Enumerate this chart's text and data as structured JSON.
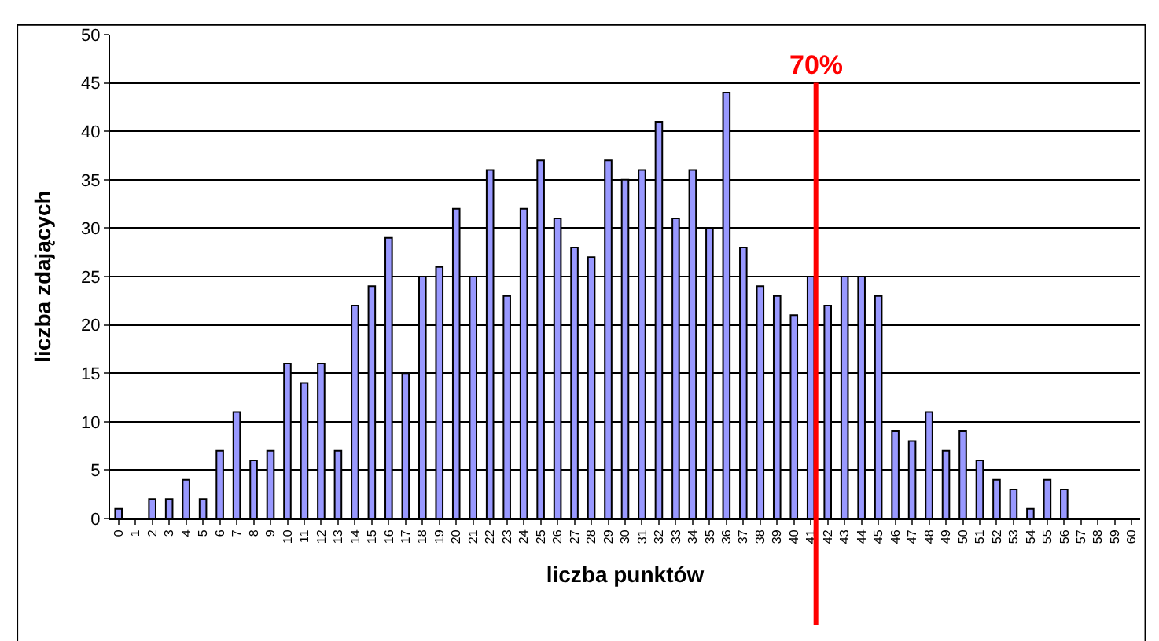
{
  "chart_data": {
    "type": "bar",
    "xlabel": "liczba punktów",
    "ylabel": "liczba zdających",
    "x": [
      0,
      1,
      2,
      3,
      4,
      5,
      6,
      7,
      8,
      9,
      10,
      11,
      12,
      13,
      14,
      15,
      16,
      17,
      18,
      19,
      20,
      21,
      22,
      23,
      24,
      25,
      26,
      27,
      28,
      29,
      30,
      31,
      32,
      33,
      34,
      35,
      36,
      37,
      38,
      39,
      40,
      41,
      42,
      43,
      44,
      45,
      46,
      47,
      48,
      49,
      50,
      51,
      52,
      53,
      54,
      55,
      56,
      57,
      58,
      59,
      60
    ],
    "values": [
      1,
      0,
      2,
      2,
      4,
      2,
      7,
      11,
      6,
      7,
      16,
      14,
      16,
      7,
      22,
      24,
      29,
      15,
      25,
      26,
      32,
      25,
      36,
      23,
      32,
      37,
      31,
      28,
      27,
      37,
      35,
      36,
      41,
      31,
      36,
      30,
      44,
      28,
      24,
      23,
      21,
      25,
      22,
      25,
      25,
      23,
      9,
      8,
      11,
      7,
      9,
      6,
      4,
      3,
      1,
      4,
      3,
      0,
      0,
      0,
      0
    ],
    "color": "#9999ff",
    "xlim": [
      -0.5,
      60.5
    ],
    "xticks": [
      0,
      1,
      2,
      3,
      4,
      5,
      6,
      7,
      8,
      9,
      10,
      11,
      12,
      13,
      14,
      15,
      16,
      17,
      18,
      19,
      20,
      21,
      22,
      23,
      24,
      25,
      26,
      27,
      28,
      29,
      30,
      31,
      32,
      33,
      34,
      35,
      36,
      37,
      38,
      39,
      40,
      41,
      42,
      43,
      44,
      45,
      46,
      47,
      48,
      49,
      50,
      51,
      52,
      53,
      54,
      55,
      56,
      57,
      58,
      59,
      60
    ],
    "ylim": [
      0,
      50
    ],
    "yticks": [
      0,
      5,
      10,
      15,
      20,
      25,
      30,
      35,
      40,
      45,
      50
    ],
    "grid": "y",
    "ref_lines": [
      {
        "axis": "x",
        "value": 41.3,
        "color": "#ff0000"
      }
    ],
    "annotations": [
      "70%"
    ]
  }
}
